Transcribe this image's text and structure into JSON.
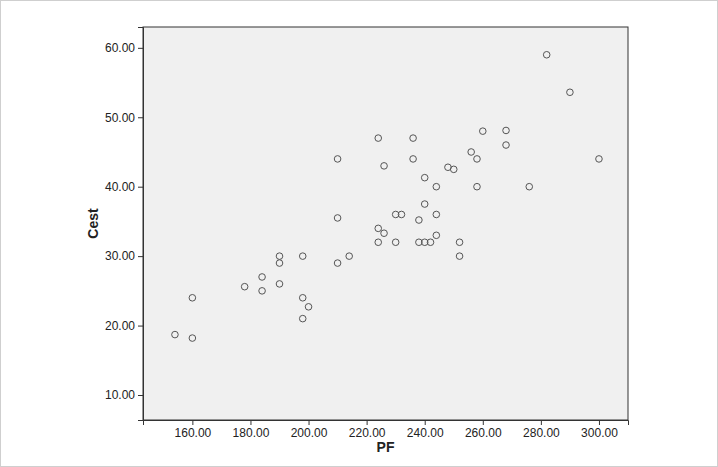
{
  "chart_data": {
    "type": "scatter",
    "x_label": "PF",
    "y_label": "Cest",
    "x": [
      154,
      160,
      160,
      178,
      184,
      184,
      190,
      190,
      190,
      198,
      198,
      198,
      200,
      210,
      210,
      210,
      214,
      224,
      224,
      224,
      226,
      226,
      230,
      230,
      232,
      236,
      236,
      238,
      238,
      240,
      240,
      240,
      242,
      244,
      244,
      244,
      248,
      250,
      252,
      252,
      256,
      258,
      258,
      260,
      268,
      268,
      276,
      282,
      290,
      300
    ],
    "values": [
      18.7,
      24,
      18.2,
      25.6,
      27,
      25,
      30,
      29,
      26,
      30,
      24,
      21,
      22.7,
      44,
      35.5,
      29,
      30,
      47,
      34,
      32,
      43,
      33.3,
      36,
      32,
      36,
      47,
      44,
      35.2,
      32,
      41.3,
      37.5,
      32,
      32,
      40,
      36,
      33,
      42.8,
      42.5,
      32,
      30,
      45,
      44,
      40,
      48,
      48.1,
      46,
      40,
      59,
      53.6,
      44
    ],
    "color": "#555555",
    "marker": "circle",
    "xlim": [
      143,
      310
    ],
    "xticks": [
      {
        "value": 160,
        "label": "160.00"
      },
      {
        "value": 180,
        "label": "180.00"
      },
      {
        "value": 200,
        "label": "200.00"
      },
      {
        "value": 220,
        "label": "220.00"
      },
      {
        "value": 240,
        "label": "240.00"
      },
      {
        "value": 260,
        "label": "260.00"
      },
      {
        "value": 280,
        "label": "280.00"
      },
      {
        "value": 300,
        "label": "300.00"
      }
    ],
    "ylim": [
      6.4,
      63
    ],
    "yticks": [
      {
        "value": 10,
        "label": "10.00"
      },
      {
        "value": 20,
        "label": "20.00"
      },
      {
        "value": 30,
        "label": "30.00"
      },
      {
        "value": 40,
        "label": "40.00"
      },
      {
        "value": 50,
        "label": "50.00"
      },
      {
        "value": 60,
        "label": "60.00"
      }
    ],
    "grid": false
  }
}
